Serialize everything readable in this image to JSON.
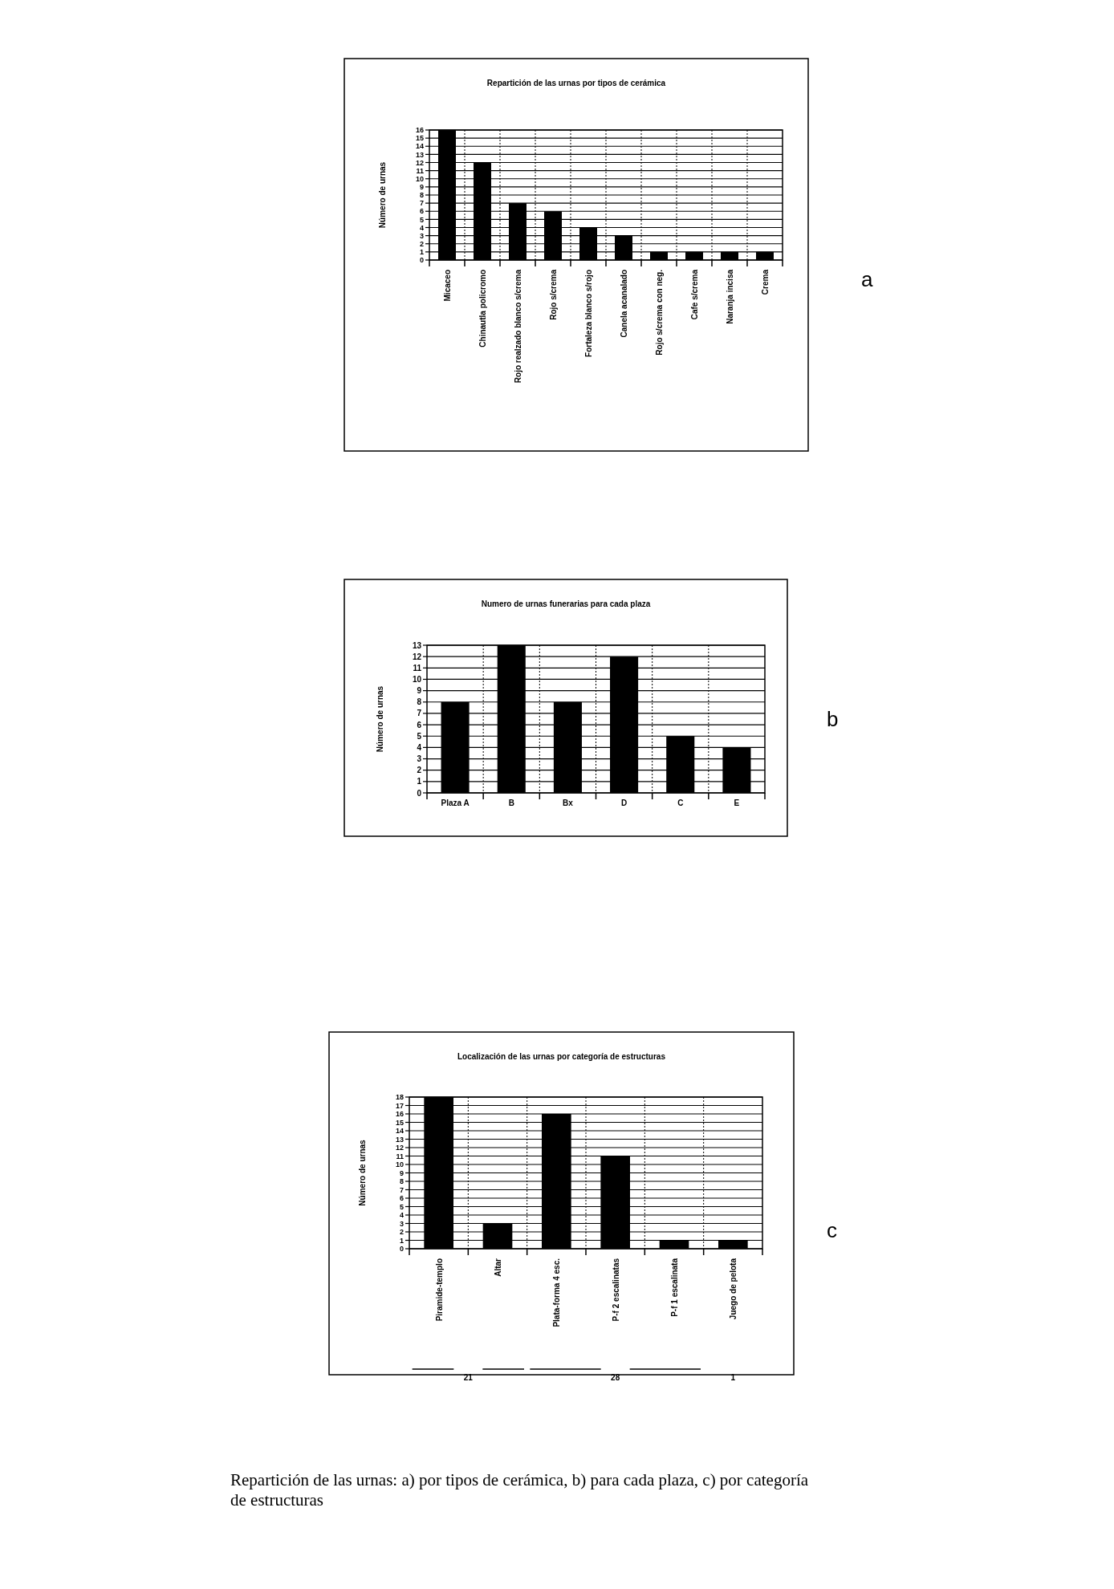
{
  "chart_data": [
    {
      "type": "bar",
      "title": "Repartición de las urnas por tipos de cerámica",
      "ylabel": "Número de urnas",
      "categories": [
        "Micaceo",
        "Chinautla policromo",
        "Rojo realzado blanco s/crema",
        "Rojo s/crema",
        "Fortaleza blanco s/rojo",
        "Canela acanalado",
        "Rojo s/crema con neg.",
        "Cafe s/crema",
        "Naranja incisa",
        "Crema"
      ],
      "values": [
        16,
        12,
        7,
        6,
        4,
        3,
        1,
        1,
        1,
        1
      ],
      "color": "#000000",
      "ylim": [
        0,
        16
      ],
      "yticks": [
        0,
        1,
        2,
        3,
        4,
        5,
        6,
        7,
        8,
        9,
        10,
        11,
        12,
        13,
        14,
        15,
        16
      ],
      "grid": true,
      "annotations": [
        "a"
      ]
    },
    {
      "type": "bar",
      "title": "Numero de urnas funerarias para cada plaza",
      "ylabel": "Número de urnas",
      "categories": [
        "Plaza A",
        "B",
        "Bx",
        "D",
        "C",
        "E"
      ],
      "values": [
        8,
        13,
        8,
        12,
        5,
        4
      ],
      "color": "#000000",
      "ylim": [
        0,
        13
      ],
      "yticks": [
        0,
        1,
        2,
        3,
        4,
        5,
        6,
        7,
        8,
        9,
        10,
        11,
        12,
        13
      ],
      "grid": true,
      "annotations": [
        "b"
      ]
    },
    {
      "type": "bar",
      "title": "Localización de las urnas por categoría de estructuras",
      "ylabel": "Número de urnas",
      "categories": [
        "Piramide-templo",
        "Altar",
        "Plata-forma 4 esc.",
        "P-f 2 escalinatas",
        "P-f 1 escalinata",
        "Juego de pelota"
      ],
      "values": [
        18,
        3,
        16,
        11,
        1,
        1
      ],
      "color": "#000000",
      "ylim": [
        0,
        18
      ],
      "yticks": [
        0,
        1,
        2,
        3,
        4,
        5,
        6,
        7,
        8,
        9,
        10,
        11,
        12,
        13,
        14,
        15,
        16,
        17,
        18
      ],
      "grid": true,
      "annotations": [
        "c",
        "21",
        "28",
        "1",
        "Repartición de las urnas: a) por tipos de cerámica, b) para cada plaza, c) por categoría de estructuras"
      ]
    }
  ]
}
